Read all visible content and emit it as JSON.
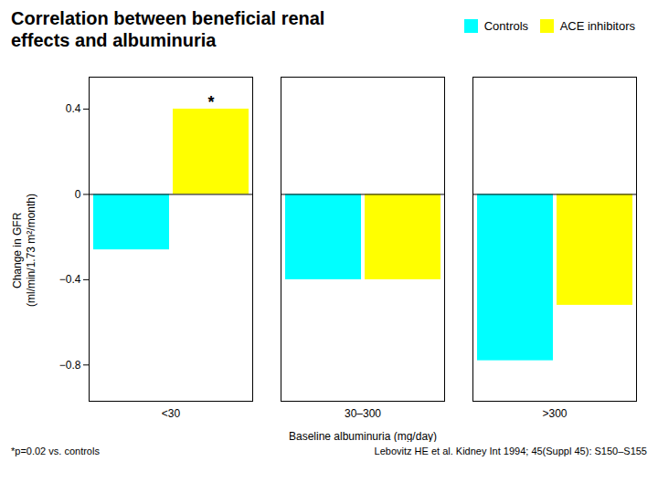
{
  "chart_data": {
    "type": "bar",
    "title": "Correlation between beneficial renal\neffects and albuminuria",
    "categories": [
      "<30",
      "30–300",
      ">300"
    ],
    "series": [
      {
        "name": "Controls",
        "color": "#00FFFF",
        "values": [
          -0.26,
          -0.4,
          -0.78
        ]
      },
      {
        "name": "ACE inhibitors",
        "color": "#FFFF00",
        "values": [
          0.4,
          -0.4,
          -0.52
        ]
      }
    ],
    "xlabel": "Baseline albuminuria (mg/day)",
    "ylabel": "Change in GFR\n(ml/min/1.73 m²/month)",
    "ylim": [
      -0.97,
      0.55
    ],
    "yticks": [
      {
        "value": -0.8,
        "label": "−0.8"
      },
      {
        "value": -0.4,
        "label": "−0.4"
      },
      0,
      0.4
    ],
    "grid": false,
    "legend": "upper right",
    "annotations": [
      {
        "text": "*",
        "category": "<30",
        "series": "ACE inhibitors"
      }
    ],
    "footnotes": [
      "*p=0.02 vs. controls",
      "Lebovitz HE et al. Kidney Int 1994; 45(Suppl 45): S150–S155"
    ]
  }
}
